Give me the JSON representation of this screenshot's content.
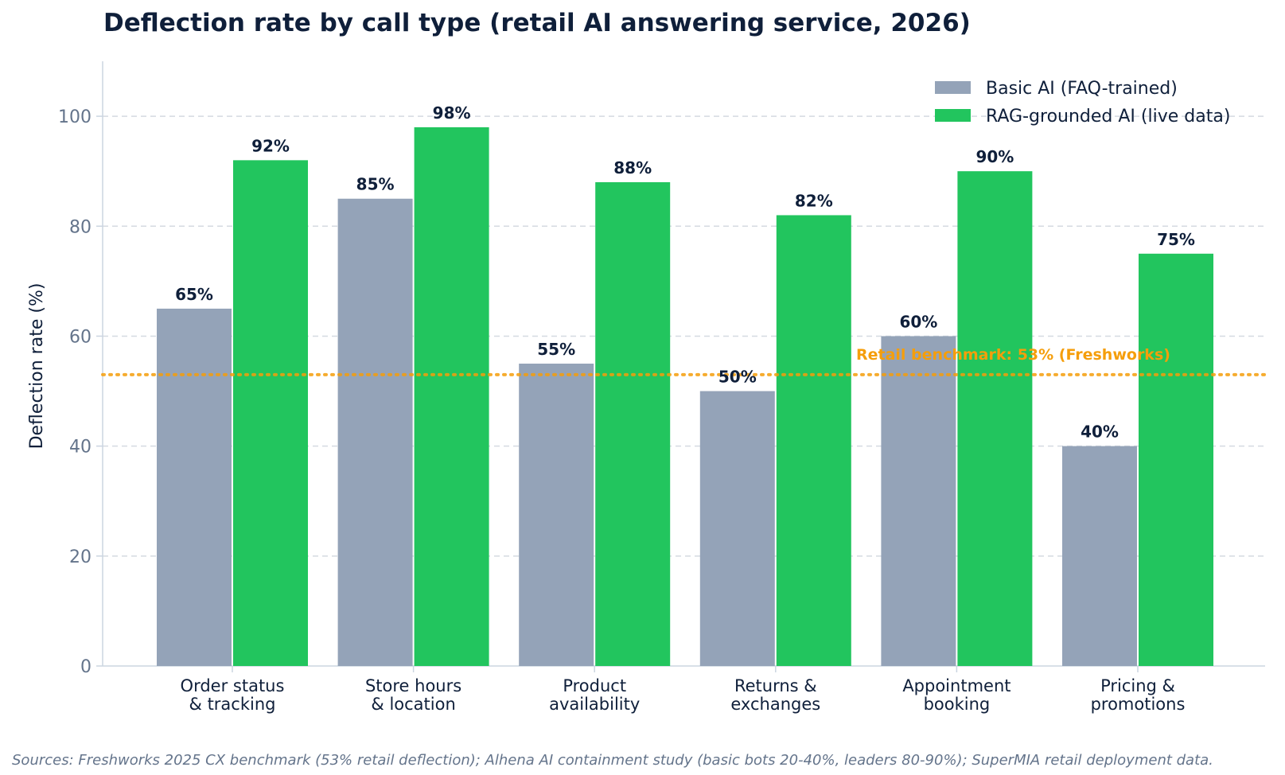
{
  "chart_data": {
    "type": "bar",
    "title": "Deflection rate by call type (retail AI answering service, 2026)",
    "xlabel": "",
    "ylabel": "Deflection rate (%)",
    "ylim": [
      0,
      110
    ],
    "yticks": [
      0,
      20,
      40,
      60,
      80,
      100
    ],
    "grid": "horizontal dashed",
    "legend_position": "top-right",
    "categories": [
      [
        "Order status",
        "& tracking"
      ],
      [
        "Store hours",
        "& location"
      ],
      [
        "Product",
        "availability"
      ],
      [
        "Returns &",
        "exchanges"
      ],
      [
        "Appointment",
        "booking"
      ],
      [
        "Pricing &",
        "promotions"
      ]
    ],
    "series": [
      {
        "name": "Basic AI (FAQ-trained)",
        "color": "#94a3b8",
        "values": [
          65,
          85,
          55,
          50,
          60,
          40
        ]
      },
      {
        "name": "RAG-grounded AI (live data)",
        "color": "#22c55e",
        "values": [
          92,
          98,
          88,
          82,
          90,
          75
        ]
      }
    ],
    "value_suffix": "%",
    "benchmark": {
      "value": 53,
      "label": "Retail benchmark: 53% (Freshworks)",
      "color": "#f59e0b"
    },
    "source": "Sources: Freshworks 2025 CX benchmark (53% retail deflection); Alhena AI containment study (basic bots 20-40%, leaders 80-90%); SuperMIA retail deployment data."
  }
}
